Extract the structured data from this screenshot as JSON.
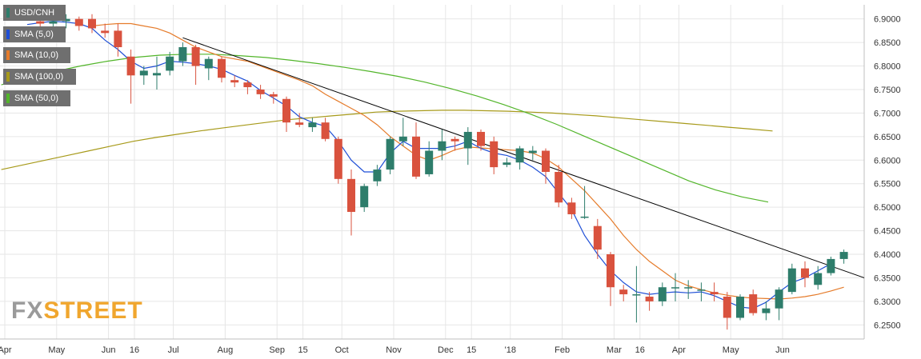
{
  "chart_data": {
    "type": "candlestick",
    "title": "USD/CNH",
    "ylim": [
      6.22,
      6.93
    ],
    "y_ticks": [
      "6.9000",
      "6.8500",
      "6.8000",
      "6.7500",
      "6.7000",
      "6.6500",
      "6.6000",
      "6.5500",
      "6.5000",
      "6.4500",
      "6.4000",
      "6.3500",
      "6.3000",
      "6.2500"
    ],
    "x_tick_labels": [
      "Apr",
      "May",
      "Jun",
      "16",
      "Jul",
      "Aug",
      "Sep",
      "15",
      "Oct",
      "Nov",
      "Dec",
      "15",
      "'18",
      "Feb",
      "Mar",
      "16",
      "Apr",
      "May",
      "Jun"
    ],
    "x_tick_index": [
      0,
      4,
      8,
      10,
      13,
      17,
      21,
      23,
      26,
      30,
      34,
      36,
      39,
      43,
      47,
      49,
      52,
      56,
      60
    ],
    "legend": [
      {
        "label": "USD/CNH",
        "color": "#2e7d6b"
      },
      {
        "label": "SMA (5,0)",
        "color": "#1f4fd6"
      },
      {
        "label": "SMA (10,0)",
        "color": "#e57b2a"
      },
      {
        "label": "SMA (100,0)",
        "color": "#a79a1a"
      },
      {
        "label": "SMA (50,0)",
        "color": "#52b52a"
      }
    ],
    "colors": {
      "up": "#2e7d6b",
      "down": "#d9523e",
      "trendline": "#000000",
      "grid": "#e6e6e6"
    },
    "candles": [
      [
        6.885,
        6.905,
        6.87,
        6.895
      ],
      [
        6.895,
        6.905,
        6.88,
        6.89
      ],
      [
        6.89,
        6.905,
        6.875,
        6.895
      ],
      [
        6.895,
        6.91,
        6.88,
        6.9
      ],
      [
        6.9,
        6.905,
        6.875,
        6.885
      ],
      [
        6.9,
        6.91,
        6.87,
        6.88
      ],
      [
        6.875,
        6.89,
        6.86,
        6.87
      ],
      [
        6.875,
        6.89,
        6.82,
        6.84
      ],
      [
        6.82,
        6.835,
        6.72,
        6.78
      ],
      [
        6.78,
        6.8,
        6.76,
        6.79
      ],
      [
        6.78,
        6.82,
        6.75,
        6.785
      ],
      [
        6.79,
        6.83,
        6.78,
        6.82
      ],
      [
        6.81,
        6.85,
        6.8,
        6.84
      ],
      [
        6.84,
        6.845,
        6.76,
        6.8
      ],
      [
        6.795,
        6.82,
        6.77,
        6.815
      ],
      [
        6.815,
        6.82,
        6.765,
        6.775
      ],
      [
        6.77,
        6.78,
        6.755,
        6.765
      ],
      [
        6.765,
        6.77,
        6.74,
        6.755
      ],
      [
        6.75,
        6.76,
        6.73,
        6.74
      ],
      [
        6.74,
        6.745,
        6.72,
        6.735
      ],
      [
        6.73,
        6.735,
        6.66,
        6.68
      ],
      [
        6.68,
        6.7,
        6.67,
        6.675
      ],
      [
        6.67,
        6.69,
        6.66,
        6.68
      ],
      [
        6.68,
        6.69,
        6.64,
        6.645
      ],
      [
        6.645,
        6.65,
        6.55,
        6.56
      ],
      [
        6.56,
        6.58,
        6.44,
        6.49
      ],
      [
        6.5,
        6.55,
        6.49,
        6.545
      ],
      [
        6.555,
        6.59,
        6.545,
        6.58
      ],
      [
        6.58,
        6.65,
        6.57,
        6.645
      ],
      [
        6.64,
        6.69,
        6.63,
        6.65
      ],
      [
        6.65,
        6.68,
        6.56,
        6.565
      ],
      [
        6.57,
        6.64,
        6.565,
        6.62
      ],
      [
        6.62,
        6.665,
        6.6,
        6.64
      ],
      [
        6.645,
        6.65,
        6.62,
        6.64
      ],
      [
        6.625,
        6.67,
        6.59,
        6.66
      ],
      [
        6.66,
        6.665,
        6.62,
        6.63
      ],
      [
        6.64,
        6.65,
        6.57,
        6.585
      ],
      [
        6.59,
        6.605,
        6.585,
        6.595
      ],
      [
        6.595,
        6.63,
        6.58,
        6.625
      ],
      [
        6.615,
        6.63,
        6.6,
        6.62
      ],
      [
        6.62,
        6.625,
        6.55,
        6.575
      ],
      [
        6.575,
        6.59,
        6.5,
        6.51
      ],
      [
        6.51,
        6.52,
        6.475,
        6.485
      ],
      [
        6.48,
        6.545,
        6.475,
        6.48
      ],
      [
        6.46,
        6.475,
        6.39,
        6.41
      ],
      [
        6.4,
        6.405,
        6.29,
        6.33
      ],
      [
        6.325,
        6.335,
        6.3,
        6.315
      ],
      [
        6.315,
        6.375,
        6.255,
        6.315
      ],
      [
        6.31,
        6.32,
        6.28,
        6.3
      ],
      [
        6.3,
        6.34,
        6.29,
        6.33
      ],
      [
        6.33,
        6.36,
        6.3,
        6.33
      ],
      [
        6.33,
        6.345,
        6.305,
        6.33
      ],
      [
        6.325,
        6.34,
        6.3,
        6.325
      ],
      [
        6.32,
        6.34,
        6.3,
        6.315
      ],
      [
        6.31,
        6.32,
        6.24,
        6.265
      ],
      [
        6.265,
        6.315,
        6.26,
        6.31
      ],
      [
        6.315,
        6.325,
        6.27,
        6.275
      ],
      [
        6.275,
        6.3,
        6.26,
        6.285
      ],
      [
        6.285,
        6.33,
        6.26,
        6.325
      ],
      [
        6.32,
        6.38,
        6.315,
        6.37
      ],
      [
        6.37,
        6.385,
        6.33,
        6.35
      ],
      [
        6.335,
        6.375,
        6.325,
        6.36
      ],
      [
        6.36,
        6.395,
        6.355,
        6.39
      ],
      [
        6.39,
        6.41,
        6.38,
        6.405
      ]
    ],
    "candle_visible_from": 1,
    "sma5": [
      6.888,
      6.892,
      6.895,
      6.893,
      6.89,
      6.88,
      6.855,
      6.835,
      6.81,
      6.795,
      6.8,
      6.81,
      6.808,
      6.805,
      6.8,
      6.793,
      6.78,
      6.768,
      6.748,
      6.732,
      6.715,
      6.692,
      6.68,
      6.672,
      6.64,
      6.6,
      6.575,
      6.575,
      6.615,
      6.64,
      6.625,
      6.625,
      6.625,
      6.63,
      6.64,
      6.625,
      6.615,
      6.61,
      6.6,
      6.585,
      6.565,
      6.53,
      6.495,
      6.44,
      6.4,
      6.365,
      6.34,
      6.32,
      6.315,
      6.318,
      6.32,
      6.318,
      6.32,
      6.312,
      6.3,
      6.288,
      6.285,
      6.298,
      6.32,
      6.34,
      6.35,
      6.365,
      6.38
    ],
    "sma10": [
      6.885,
      6.888,
      6.89,
      6.89,
      6.885,
      6.88,
      6.87,
      6.855,
      6.84,
      6.83,
      6.82,
      6.815,
      6.81,
      6.8,
      6.79,
      6.78,
      6.77,
      6.758,
      6.74,
      6.725,
      6.71,
      6.695,
      6.675,
      6.65,
      6.63,
      6.61,
      6.6,
      6.61,
      6.622,
      6.628,
      6.626,
      6.624,
      6.622,
      6.62,
      6.615,
      6.603,
      6.585,
      6.56,
      6.535,
      6.505,
      6.475,
      6.44,
      6.41,
      6.385,
      6.365,
      6.345,
      6.333,
      6.325,
      6.318,
      6.313,
      6.309,
      6.307,
      6.306,
      6.305,
      6.307,
      6.31,
      6.315,
      6.322,
      6.33
    ],
    "sma10_start": 10,
    "sma100": [
      6.58,
      6.59,
      6.6,
      6.61,
      6.62,
      6.63,
      6.64,
      6.648,
      6.655,
      6.662,
      6.668,
      6.674,
      6.68,
      6.686,
      6.69,
      6.694,
      6.698,
      6.702,
      6.704,
      6.705,
      6.706,
      6.706,
      6.705,
      6.704,
      6.702,
      6.7,
      6.697,
      6.694,
      6.69,
      6.686,
      6.682,
      6.678,
      6.674,
      6.67,
      6.666,
      6.662
    ],
    "sma100_start": 0,
    "sma100_step": 1.7,
    "sma50": [
      6.76,
      6.775,
      6.788,
      6.8,
      6.81,
      6.818,
      6.823,
      6.825,
      6.825,
      6.822,
      6.818,
      6.812,
      6.805,
      6.797,
      6.788,
      6.778,
      6.766,
      6.752,
      6.736,
      6.718,
      6.698,
      6.676,
      6.652,
      6.628,
      6.604,
      6.58,
      6.556,
      6.537,
      6.522,
      6.511
    ],
    "sma50_start": 0,
    "sma50_step": 2.04,
    "trendline": {
      "start_index": 12,
      "start_value": 6.86,
      "end_value": 6.35
    }
  },
  "watermark": {
    "part1": "FX",
    "part2": "STREET",
    "color1": "#9a9a9a",
    "color2": "#f0a62e"
  }
}
